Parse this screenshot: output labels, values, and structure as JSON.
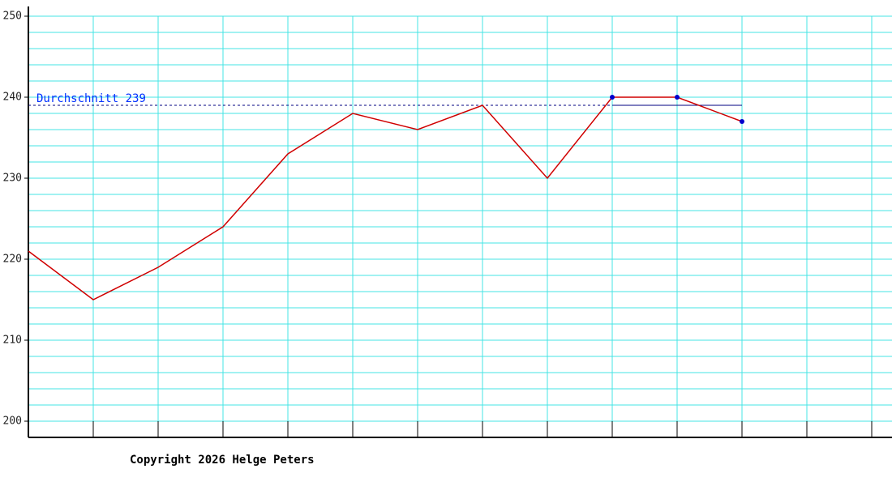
{
  "chart_data": {
    "type": "line",
    "x": [
      0,
      1,
      2,
      3,
      4,
      5,
      6,
      7,
      8,
      9,
      10,
      11
    ],
    "series": [
      {
        "color": "#d00000",
        "values": [
          221,
          215,
          219,
          224,
          233,
          238,
          236,
          239,
          230,
          240,
          240,
          237
        ],
        "markers": [
          false,
          false,
          false,
          false,
          false,
          false,
          false,
          false,
          false,
          true,
          true,
          true
        ],
        "marker_color": "#0000cc"
      }
    ],
    "xlim": [
      0,
      13.3125
    ],
    "xticks": [
      1,
      2,
      3,
      4,
      5,
      6,
      7,
      8,
      9,
      10,
      11,
      12,
      13
    ],
    "ylim": [
      198,
      251.2
    ],
    "yticks": [
      200,
      210,
      220,
      230,
      240,
      250
    ],
    "yminorticks": [
      202,
      204,
      206,
      208,
      212,
      214,
      216,
      218,
      222,
      224,
      226,
      228,
      232,
      234,
      236,
      238,
      242,
      244,
      246,
      248
    ],
    "grid": true,
    "grid_color": "#44e4e4",
    "average": {
      "label": "Durchschnitt",
      "value": 239,
      "color": "#0030ff"
    },
    "footer": "Copyright 2026 Helge Peters"
  }
}
